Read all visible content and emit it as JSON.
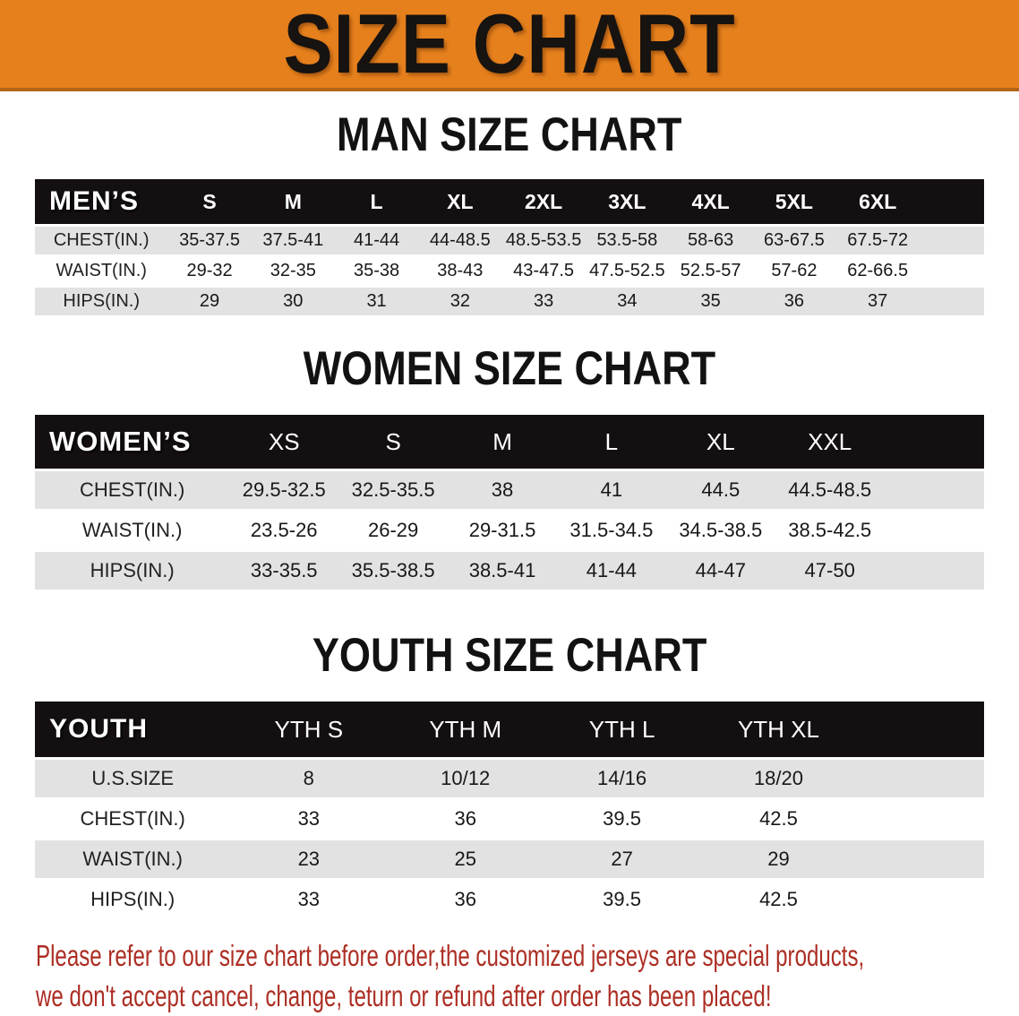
{
  "banner": {
    "title": "SIZE CHART"
  },
  "sections": [
    {
      "heading": "MAN SIZE CHART",
      "table": {
        "header_label": "MEN’S",
        "columns": [
          "S",
          "M",
          "L",
          "XL",
          "2XL",
          "3XL",
          "4XL",
          "5XL",
          "6XL"
        ],
        "rows": [
          {
            "label": "CHEST(IN.)",
            "values": [
              "35-37.5",
              "37.5-41",
              "41-44",
              "44-48.5",
              "48.5-53.5",
              "53.5-58",
              "58-63",
              "63-67.5",
              "67.5-72"
            ]
          },
          {
            "label": "WAIST(IN.)",
            "values": [
              "29-32",
              "32-35",
              "35-38",
              "38-43",
              "43-47.5",
              "47.5-52.5",
              "52.5-57",
              "57-62",
              "62-66.5"
            ]
          },
          {
            "label": "HIPS(IN.)",
            "values": [
              "29",
              "30",
              "31",
              "32",
              "33",
              "34",
              "35",
              "36",
              "37"
            ]
          }
        ]
      }
    },
    {
      "heading": "WOMEN SIZE CHART",
      "table": {
        "header_label": "WOMEN’S",
        "columns": [
          "XS",
          "S",
          "M",
          "L",
          "XL",
          "XXL"
        ],
        "rows": [
          {
            "label": "CHEST(IN.)",
            "values": [
              "29.5-32.5",
              "32.5-35.5",
              "38",
              "41",
              "44.5",
              "44.5-48.5"
            ]
          },
          {
            "label": "WAIST(IN.)",
            "values": [
              "23.5-26",
              "26-29",
              "29-31.5",
              "31.5-34.5",
              "34.5-38.5",
              "38.5-42.5"
            ]
          },
          {
            "label": "HIPS(IN.)",
            "values": [
              "33-35.5",
              "35.5-38.5",
              "38.5-41",
              "41-44",
              "44-47",
              "47-50"
            ]
          }
        ]
      }
    },
    {
      "heading": "YOUTH SIZE CHART",
      "table": {
        "header_label": "YOUTH",
        "columns": [
          "YTH S",
          "YTH M",
          "YTH L",
          "YTH XL"
        ],
        "rows": [
          {
            "label": "U.S.SIZE",
            "values": [
              "8",
              "10/12",
              "14/16",
              "18/20"
            ]
          },
          {
            "label": "CHEST(IN.)",
            "values": [
              "33",
              "36",
              "39.5",
              "42.5"
            ]
          },
          {
            "label": "WAIST(IN.)",
            "values": [
              "23",
              "25",
              "27",
              "29"
            ]
          },
          {
            "label": "HIPS(IN.)",
            "values": [
              "33",
              "36",
              "39.5",
              "42.5"
            ]
          }
        ]
      }
    }
  ],
  "disclaimer": {
    "line1": "Please refer to our size chart before order,the customized jerseys are special products,",
    "line2": "we don't accept cancel, change, teturn or refund after order has been placed!"
  },
  "colors": {
    "banner_bg": "#E6801C",
    "banner_edge": "#B4641A",
    "table_header_bg": "#141011",
    "row_stripe_bg": "#E3E2E2",
    "disclaimer_color": "#AC2E24"
  }
}
